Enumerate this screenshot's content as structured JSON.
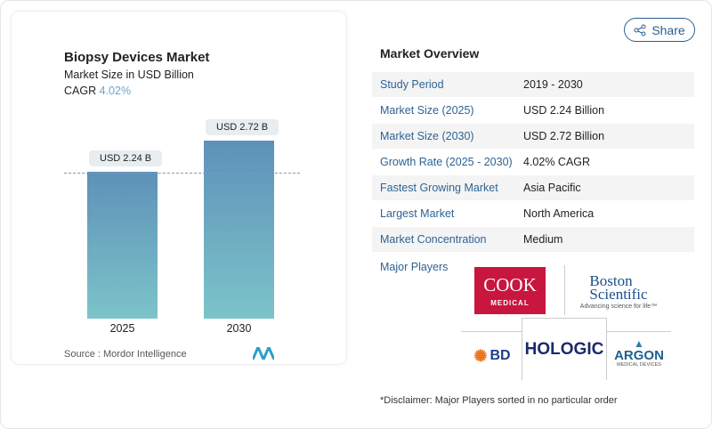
{
  "share_label": "Share",
  "chart_data": {
    "type": "bar",
    "title": "Biopsy Devices Market",
    "subtitle": "Market Size in USD Billion",
    "cagr_label": "CAGR",
    "cagr_value": "4.02%",
    "categories": [
      "2025",
      "2030"
    ],
    "values": [
      2.24,
      2.72
    ],
    "data_labels": [
      "USD 2.24 B",
      "USD 2.72 B"
    ],
    "colors": {
      "bar_top": "#5e91b9",
      "bar_bottom": "#7cc4c9"
    }
  },
  "source": "Source :  Mordor Intelligence",
  "overview": {
    "title": "Market Overview",
    "rows": [
      {
        "k": "Study Period",
        "v": "2019 - 2030"
      },
      {
        "k": "Market Size (2025)",
        "v": "USD 2.24 Billion"
      },
      {
        "k": "Market Size (2030)",
        "v": "USD 2.72 Billion"
      },
      {
        "k": "Growth Rate (2025 - 2030)",
        "v": "4.02% CAGR"
      },
      {
        "k": "Fastest Growing Market",
        "v": "Asia Pacific"
      },
      {
        "k": "Largest Market",
        "v": "North America"
      },
      {
        "k": "Market Concentration",
        "v": "Medium"
      }
    ],
    "major_players_label": "Major Players",
    "players": [
      "COOK MEDICAL",
      "Boston Scientific",
      "BD",
      "HOLOGIC",
      "ARGON MEDICAL DEVICES"
    ],
    "disclaimer": "*Disclaimer: Major Players sorted in no particular order"
  }
}
